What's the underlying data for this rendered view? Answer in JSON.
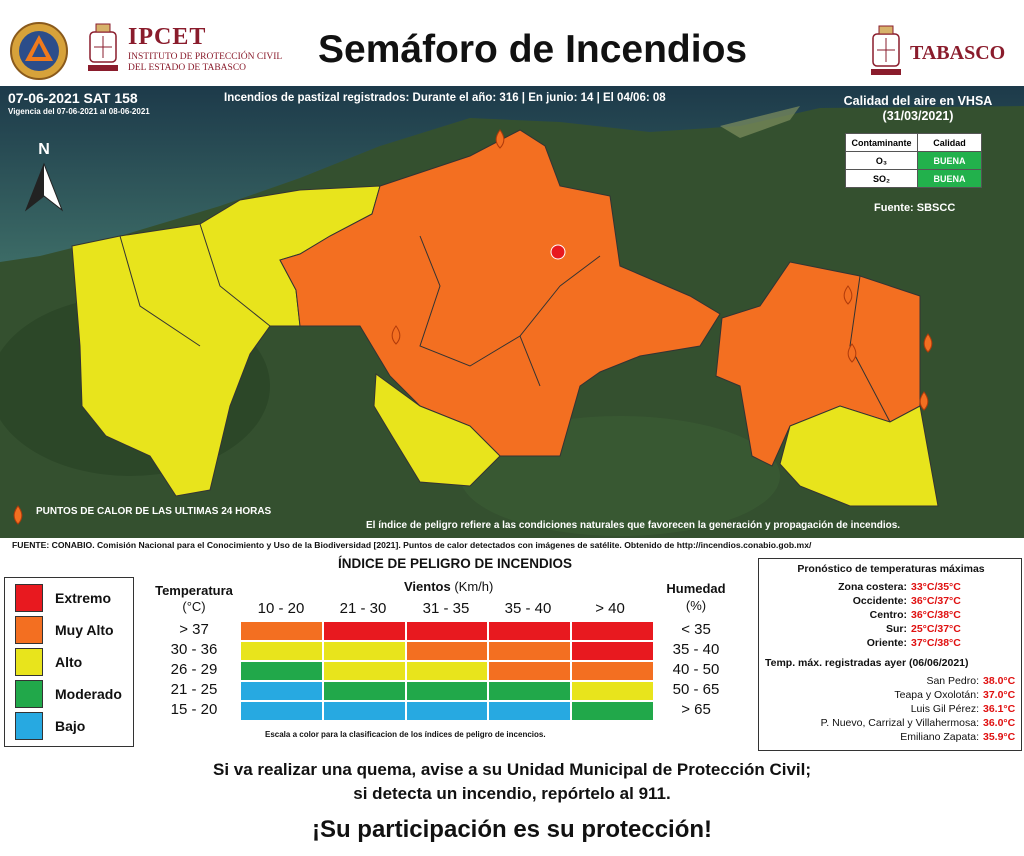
{
  "header": {
    "title": "Semáforo de Incendios",
    "ipcet": {
      "name": "IPCET",
      "line1": "INSTITUTO DE PROTECCIÓN CIVIL",
      "line2": "DEL ESTADO DE TABASCO"
    },
    "state_logo": "TABASCO"
  },
  "map": {
    "date": "07-06-2021 SAT 158",
    "vigencia": "Vigencia del 07-06-2021 al 08-06-2021",
    "incendios": "Incendios de pastizal registrados: Durante el año: 316 | En junio: 14 | El 04/06: 08",
    "north_label": "N",
    "air_quality": {
      "title": "Calidad del aire en VHSA",
      "date": "(31/03/2021)",
      "headers": [
        "Contaminante",
        "Calidad"
      ],
      "rows": [
        {
          "pollutant": "O₃",
          "quality": "BUENA"
        },
        {
          "pollutant": "SO₂",
          "quality": "BUENA"
        }
      ],
      "source": "Fuente: SBSCC"
    },
    "hotspots_label": "PUNTOS DE CALOR DE LAS ULTIMAS 24 HORAS",
    "index_note": "El índice de peligro refiere a las condiciones naturales que favorecen la generación y propagación de incendios.",
    "colors": {
      "extremo": "#e8191f",
      "muy_alto": "#f36f21",
      "alto": "#e8e41c",
      "moderado": "#21a84a",
      "bajo": "#27a9e1"
    }
  },
  "source_line": "FUENTE: CONABIO. Comisión Nacional para el Conocimiento y Uso de la Biodiversidad [2021]. Puntos de calor detectados con imágenes de satélite. Obtenido de http://incendios.conabio.gob.mx/",
  "legend": [
    {
      "label": "Extremo",
      "color": "#e8191f"
    },
    {
      "label": "Muy Alto",
      "color": "#f36f21"
    },
    {
      "label": "Alto",
      "color": "#e8e41c"
    },
    {
      "label": "Moderado",
      "color": "#21a84a"
    },
    {
      "label": "Bajo",
      "color": "#27a9e1"
    }
  ],
  "index_table": {
    "title": "ÍNDICE DE PELIGRO DE INCENDIOS",
    "temp_header": "Temperatura",
    "temp_unit": "(°C)",
    "wind_header": "Vientos",
    "wind_unit": "(Km/h)",
    "hum_header": "Humedad",
    "hum_unit": "(%)",
    "wind_ranges": [
      "10 - 20",
      "21 - 30",
      "31 - 35",
      "35 - 40",
      "> 40"
    ],
    "temp_ranges": [
      "> 37",
      "30 - 36",
      "26 - 29",
      "21 - 25",
      "15 - 20"
    ],
    "hum_ranges": [
      "< 35",
      "35 - 40",
      "40 - 50",
      "50 - 65",
      "> 65"
    ],
    "grid": [
      [
        "muy_alto",
        "extremo",
        "extremo",
        "extremo",
        "extremo"
      ],
      [
        "alto",
        "alto",
        "muy_alto",
        "muy_alto",
        "extremo"
      ],
      [
        "moderado",
        "alto",
        "alto",
        "muy_alto",
        "muy_alto"
      ],
      [
        "bajo",
        "moderado",
        "moderado",
        "moderado",
        "alto"
      ],
      [
        "bajo",
        "bajo",
        "bajo",
        "bajo",
        "moderado"
      ]
    ],
    "scale_note": "Escala a color para la clasificacion de los índices de peligro de incencios."
  },
  "forecast": {
    "title": "Pronóstico de temperaturas máximas",
    "zones": [
      {
        "label": "Zona costera:",
        "value": "33°C/35°C"
      },
      {
        "label": "Occidente:",
        "value": "36°C/37°C"
      },
      {
        "label": "Centro:",
        "value": "36°C/38°C"
      },
      {
        "label": "Sur:",
        "value": "25°C/37°C"
      },
      {
        "label": "Oriente:",
        "value": "37°C/38°C"
      }
    ],
    "recorded_title": "Temp. máx. registradas ayer (06/06/2021)",
    "recorded": [
      {
        "label": "San Pedro:",
        "value": "38.0°C"
      },
      {
        "label": "Teapa y Oxolotán:",
        "value": "37.0°C"
      },
      {
        "label": "Luis Gil Pérez:",
        "value": "36.1°C"
      },
      {
        "label": "P. Nuevo, Carrizal y Villahermosa:",
        "value": "36.0°C"
      },
      {
        "label": "Emiliano Zapata:",
        "value": "35.9°C"
      }
    ]
  },
  "messages": {
    "line1": "Si va realizar una quema, avise a su Unidad Municipal de Protección Civil;",
    "line2": "si detecta un incendio, repórtelo al 911.",
    "line3": "¡Su participación es su protección!"
  }
}
